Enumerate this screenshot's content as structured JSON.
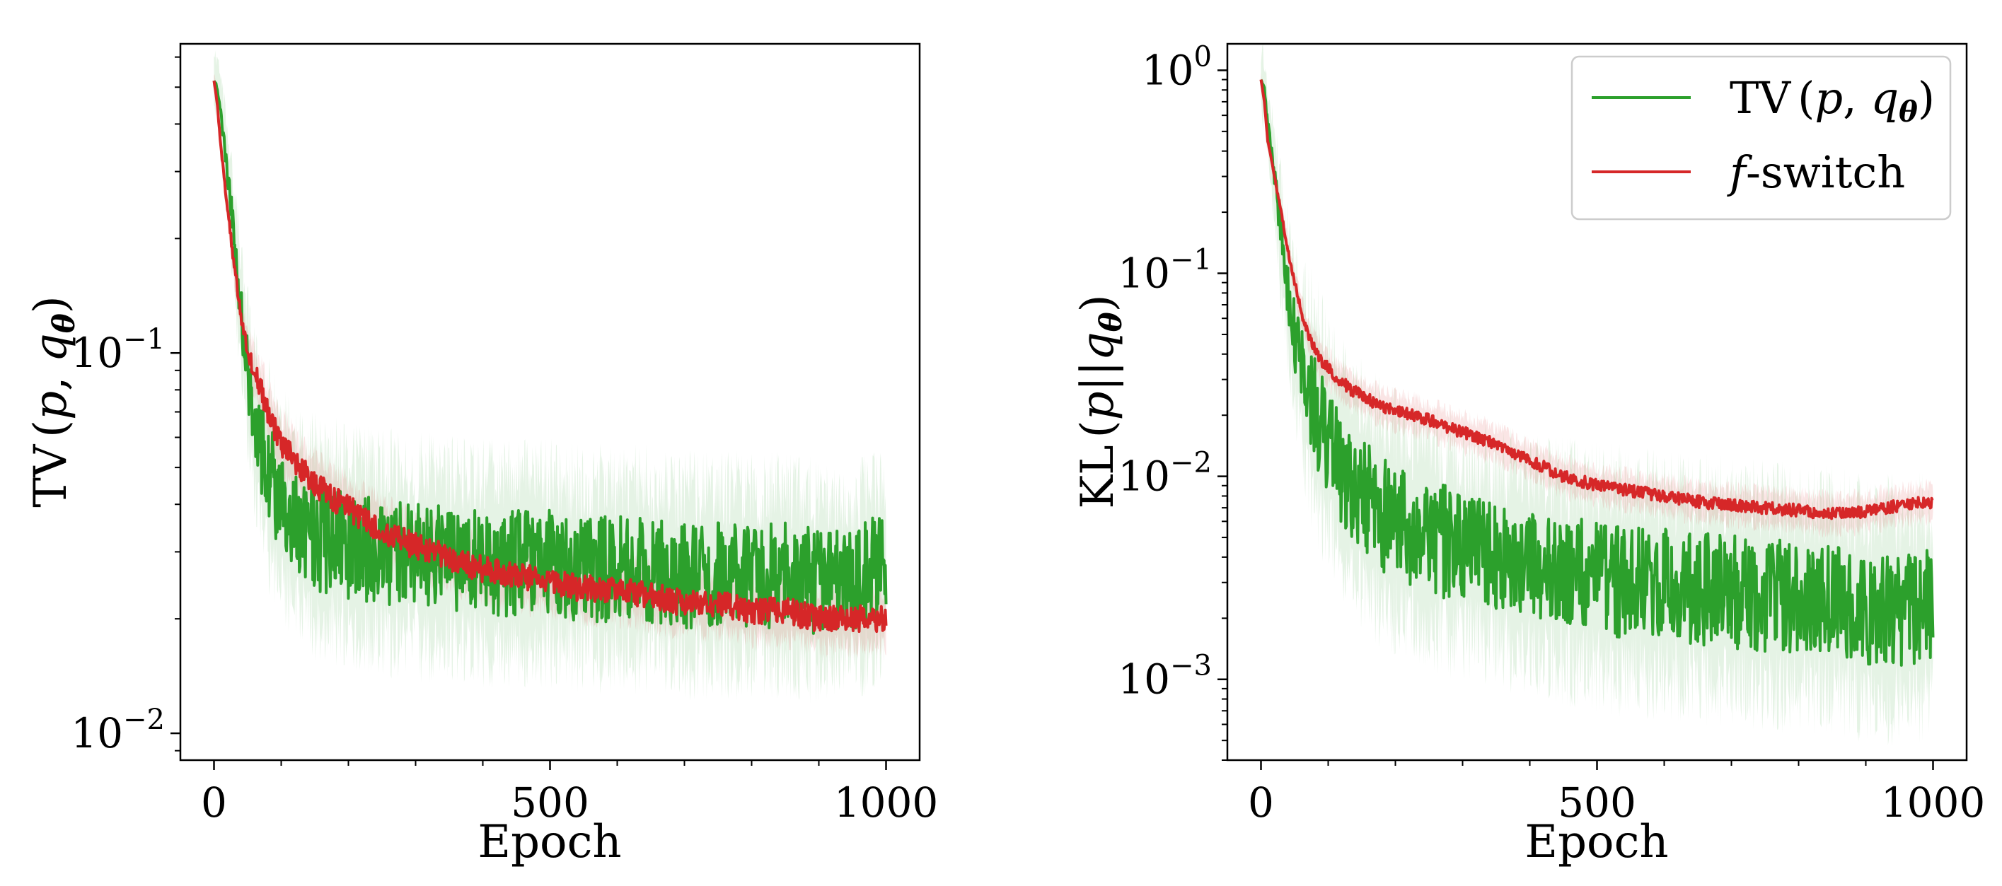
{
  "chart_data": [
    {
      "type": "line",
      "panel": "left",
      "xlabel": "Epoch",
      "ylabel": "TV (p, q_θ)",
      "yscale": "log",
      "xlim": [
        -50,
        1050
      ],
      "ylim": [
        0.0085,
        0.65
      ],
      "xticks": [
        0,
        500,
        1000
      ],
      "xtick_labels": [
        "0",
        "500",
        "1000"
      ],
      "yticks": [
        0.01,
        0.1
      ],
      "ytick_labels": [
        {
          "base": "10",
          "exp": "−2"
        },
        {
          "base": "10",
          "exp": "−1"
        }
      ],
      "series": [
        {
          "name": "TV (p, q_θ)",
          "color": "#2ca02c",
          "band_color": "#2ca02c",
          "noise": 0.14,
          "band_noise": 0.22,
          "x": [
            0,
            5,
            10,
            20,
            30,
            40,
            50,
            60,
            70,
            80,
            90,
            100,
            120,
            140,
            160,
            180,
            200,
            250,
            300,
            350,
            400,
            450,
            500,
            550,
            600,
            650,
            700,
            750,
            800,
            850,
            900,
            950,
            1000
          ],
          "y": [
            0.52,
            0.5,
            0.42,
            0.3,
            0.2,
            0.13,
            0.09,
            0.066,
            0.055,
            0.048,
            0.044,
            0.04,
            0.036,
            0.034,
            0.032,
            0.032,
            0.031,
            0.03,
            0.029,
            0.029,
            0.028,
            0.028,
            0.028,
            0.027,
            0.027,
            0.027,
            0.026,
            0.026,
            0.026,
            0.026,
            0.025,
            0.025,
            0.028
          ]
        },
        {
          "name": "f-switch",
          "color": "#d62728",
          "band_color": "#d62728",
          "noise": 0.035,
          "band_noise": 0.07,
          "x": [
            0,
            5,
            10,
            20,
            30,
            40,
            50,
            60,
            70,
            80,
            90,
            100,
            120,
            140,
            160,
            180,
            200,
            250,
            300,
            350,
            400,
            450,
            500,
            550,
            600,
            650,
            700,
            750,
            800,
            850,
            900,
            950,
            1000
          ],
          "y": [
            0.52,
            0.45,
            0.35,
            0.24,
            0.17,
            0.125,
            0.1,
            0.09,
            0.08,
            0.07,
            0.063,
            0.058,
            0.052,
            0.047,
            0.044,
            0.041,
            0.039,
            0.034,
            0.031,
            0.029,
            0.027,
            0.026,
            0.025,
            0.024,
            0.024,
            0.023,
            0.022,
            0.022,
            0.021,
            0.021,
            0.02,
            0.02,
            0.02
          ]
        }
      ]
    },
    {
      "type": "line",
      "panel": "right",
      "xlabel": "Epoch",
      "ylabel": "KL (p||q_θ)",
      "yscale": "log",
      "xlim": [
        -50,
        1050
      ],
      "ylim": [
        0.0004,
        1.35
      ],
      "xticks": [
        0,
        500,
        1000
      ],
      "xtick_labels": [
        "0",
        "500",
        "1000"
      ],
      "yticks": [
        0.001,
        0.01,
        0.1,
        1
      ],
      "ytick_labels": [
        {
          "base": "10",
          "exp": "−3"
        },
        {
          "base": "10",
          "exp": "−2"
        },
        {
          "base": "10",
          "exp": "−1"
        },
        {
          "base": "10",
          "exp": "0"
        }
      ],
      "legend": {
        "location": "upper right",
        "entries": [
          {
            "label": "TV (p, q_θ)",
            "color": "#2ca02c"
          },
          {
            "label": "f-switch",
            "color": "#d62728"
          }
        ]
      },
      "series": [
        {
          "name": "TV (p, q_θ)",
          "color": "#2ca02c",
          "band_color": "#2ca02c",
          "noise": 0.28,
          "band_noise": 0.45,
          "x": [
            0,
            5,
            10,
            20,
            30,
            40,
            50,
            60,
            70,
            80,
            90,
            100,
            120,
            140,
            160,
            180,
            200,
            250,
            300,
            350,
            400,
            450,
            500,
            550,
            600,
            650,
            700,
            750,
            800,
            850,
            900,
            950,
            1000
          ],
          "y": [
            0.9,
            0.8,
            0.55,
            0.3,
            0.15,
            0.08,
            0.05,
            0.035,
            0.027,
            0.022,
            0.018,
            0.015,
            0.011,
            0.009,
            0.0075,
            0.0065,
            0.006,
            0.005,
            0.0045,
            0.004,
            0.0037,
            0.0034,
            0.0032,
            0.003,
            0.0029,
            0.0028,
            0.0027,
            0.0026,
            0.0025,
            0.0025,
            0.0022,
            0.0022,
            0.0023
          ]
        },
        {
          "name": "f-switch",
          "color": "#d62728",
          "band_color": "#d62728",
          "noise": 0.03,
          "band_noise": 0.08,
          "x": [
            0,
            5,
            10,
            20,
            30,
            40,
            50,
            60,
            70,
            80,
            90,
            100,
            120,
            140,
            160,
            180,
            200,
            250,
            300,
            350,
            400,
            450,
            500,
            550,
            600,
            650,
            700,
            750,
            800,
            850,
            900,
            950,
            1000
          ],
          "y": [
            0.9,
            0.7,
            0.45,
            0.3,
            0.2,
            0.13,
            0.09,
            0.065,
            0.05,
            0.042,
            0.037,
            0.034,
            0.029,
            0.026,
            0.024,
            0.022,
            0.021,
            0.019,
            0.0165,
            0.0145,
            0.012,
            0.01,
            0.009,
            0.0085,
            0.008,
            0.0075,
            0.0072,
            0.007,
            0.0068,
            0.0065,
            0.0067,
            0.0072,
            0.0075
          ]
        }
      ]
    }
  ]
}
